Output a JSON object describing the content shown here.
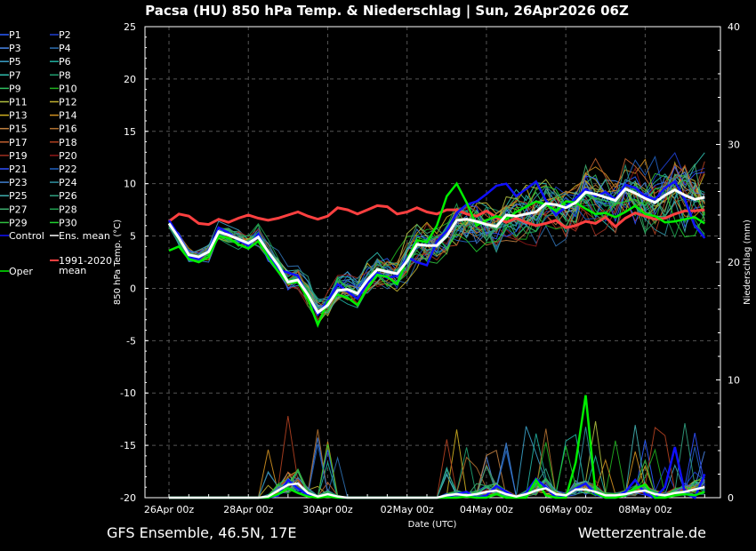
{
  "chart_data": {
    "type": "line",
    "title": "Pacsa  (HU)  850 hPa Temp. & Niederschlag | Sun, 26Apr2026 06Z",
    "xlabel": "Date (UTC)",
    "ylabel_left": "850 hPa Temp. (°C)",
    "ylabel_right": "Niederschlag (mm)",
    "footer_left": "GFS Ensemble, 46.5N, 17E",
    "footer_right": "Wetterzentrale.de",
    "x_tick_labels": [
      "26Apr 00z",
      "28Apr 00z",
      "30Apr 00z",
      "02May 00z",
      "04May 00z",
      "06May 00z",
      "08May 00z"
    ],
    "x_range_hours": [
      0,
      324
    ],
    "step_hours": 6,
    "y_left_ticks": [
      25,
      20,
      15,
      10,
      5,
      0,
      -5,
      -10,
      -15,
      -20
    ],
    "y_left_range": [
      -20,
      25
    ],
    "y_right_ticks": [
      40,
      30,
      20,
      10,
      0
    ],
    "y_right_range": [
      0,
      40
    ],
    "grid": true,
    "legend_position": "left",
    "legend": [
      {
        "label": "P1",
        "color": "#2a5cff"
      },
      {
        "label": "P2",
        "color": "#1f3fd0"
      },
      {
        "label": "P3",
        "color": "#4a86e8"
      },
      {
        "label": "P4",
        "color": "#2e6fb0"
      },
      {
        "label": "P5",
        "color": "#3aa0c8"
      },
      {
        "label": "P6",
        "color": "#20b0a0"
      },
      {
        "label": "P7",
        "color": "#30c0b0"
      },
      {
        "label": "P8",
        "color": "#20a070"
      },
      {
        "label": "P9",
        "color": "#30c060"
      },
      {
        "label": "P10",
        "color": "#20b020"
      },
      {
        "label": "P11",
        "color": "#b0c040"
      },
      {
        "label": "P12",
        "color": "#c0b030"
      },
      {
        "label": "P13",
        "color": "#d0b020"
      },
      {
        "label": "P14",
        "color": "#d09020"
      },
      {
        "label": "P15",
        "color": "#c08040"
      },
      {
        "label": "P16",
        "color": "#b07030"
      },
      {
        "label": "P17",
        "color": "#c06030"
      },
      {
        "label": "P18",
        "color": "#b04020"
      },
      {
        "label": "P19",
        "color": "#a03020"
      },
      {
        "label": "P20",
        "color": "#901818"
      },
      {
        "label": "P21",
        "color": "#3050ff"
      },
      {
        "label": "P22",
        "color": "#2060c0"
      },
      {
        "label": "P23",
        "color": "#4080d0"
      },
      {
        "label": "P24",
        "color": "#3090a0"
      },
      {
        "label": "P25",
        "color": "#40b0b0"
      },
      {
        "label": "P26",
        "color": "#30a080"
      },
      {
        "label": "P27",
        "color": "#40b070"
      },
      {
        "label": "P28",
        "color": "#20a050"
      },
      {
        "label": "P29",
        "color": "#30c040"
      },
      {
        "label": "P30",
        "color": "#20d030"
      },
      {
        "label": "Control",
        "color": "#1010ff"
      },
      {
        "label": "Ens. mean",
        "color": "#ffffff"
      },
      {
        "label": "Oper",
        "color": "#00ee00"
      },
      {
        "label": "1991-2020 mean",
        "color": "#ff4040"
      }
    ],
    "ens_mean_temp": [
      6.2,
      4.8,
      3.2,
      3.0,
      3.5,
      5.4,
      5.1,
      4.7,
      4.3,
      4.9,
      3.5,
      2.2,
      0.6,
      0.8,
      -0.6,
      -2.3,
      -1.6,
      -0.2,
      -0.1,
      -0.5,
      0.8,
      1.8,
      1.6,
      1.4,
      2.6,
      4.2,
      4.1,
      4.1,
      5.0,
      6.5,
      6.6,
      6.4,
      6.1,
      5.9,
      7.0,
      6.9,
      7.1,
      7.3,
      8.1,
      8.0,
      7.7,
      8.2,
      9.2,
      9.0,
      8.7,
      8.4,
      9.5,
      9.1,
      8.6,
      8.2,
      8.9,
      9.4,
      8.9,
      8.5,
      8.7
    ],
    "control_temp": [
      6.5,
      5.0,
      3.0,
      2.8,
      3.6,
      5.8,
      5.3,
      4.6,
      4.1,
      5.2,
      3.3,
      1.8,
      1.5,
      1.2,
      -0.8,
      -2.5,
      -1.2,
      0.4,
      -0.3,
      -1.0,
      0.5,
      1.5,
      1.0,
      1.2,
      3.0,
      2.5,
      2.2,
      4.5,
      5.5,
      7.2,
      8.0,
      8.3,
      9.0,
      9.8,
      10.0,
      8.8,
      9.5,
      10.2,
      8.4,
      7.0,
      7.8,
      8.6,
      9.5,
      8.8,
      9.2,
      8.5,
      9.9,
      9.6,
      8.8,
      8.5,
      9.6,
      10.2,
      8.5,
      6.0,
      4.8
    ],
    "oper_temp": [
      3.6,
      4.0,
      2.8,
      2.5,
      3.0,
      5.0,
      4.8,
      4.2,
      3.8,
      4.5,
      3.0,
      1.6,
      0.5,
      0.6,
      -1.0,
      -3.5,
      -1.3,
      -0.6,
      -0.9,
      -1.6,
      0.0,
      1.3,
      1.1,
      0.4,
      2.8,
      4.6,
      4.4,
      6.0,
      8.8,
      10.0,
      8.2,
      6.0,
      6.5,
      6.9,
      6.6,
      7.3,
      7.8,
      8.3,
      8.0,
      7.4,
      8.3,
      8.2,
      7.6,
      7.1,
      7.2,
      6.8,
      7.3,
      7.9,
      7.1,
      6.9,
      6.3,
      6.4,
      6.6,
      6.8,
      6.2
    ],
    "climate_mean_temp": [
      6.4,
      7.1,
      6.9,
      6.2,
      6.1,
      6.6,
      6.3,
      6.7,
      7.0,
      6.7,
      6.5,
      6.7,
      7.0,
      7.3,
      6.9,
      6.6,
      6.9,
      7.7,
      7.5,
      7.1,
      7.5,
      7.9,
      7.8,
      7.1,
      7.3,
      7.7,
      7.3,
      7.1,
      7.5,
      7.5,
      7.1,
      6.9,
      7.4,
      6.8,
      6.3,
      6.7,
      6.3,
      6.0,
      6.2,
      6.5,
      5.8,
      6.0,
      6.4,
      6.2,
      6.8,
      5.9,
      6.7,
      7.2,
      6.9,
      6.6,
      6.7,
      7.1,
      7.4,
      7.4,
      7.5
    ],
    "ens_mean_precip": [
      0,
      0,
      0,
      0,
      0,
      0,
      0,
      0,
      0,
      0,
      0.1,
      0.6,
      1.1,
      1.2,
      0.4,
      0.1,
      0.3,
      0.1,
      0,
      0,
      0,
      0,
      0,
      0,
      0,
      0,
      0,
      0,
      0.2,
      0.3,
      0.2,
      0.3,
      0.5,
      0.6,
      0.3,
      0.1,
      0.3,
      0.6,
      0.8,
      0.3,
      0.2,
      0.7,
      0.7,
      0.5,
      0.2,
      0.2,
      0.3,
      0.5,
      0.6,
      0.3,
      0.2,
      0.4,
      0.5,
      0.7,
      0.9
    ],
    "control_precip": [
      0,
      0,
      0,
      0,
      0,
      0,
      0,
      0,
      0,
      0,
      0,
      0.2,
      1.5,
      0.8,
      0.2,
      0,
      0.2,
      0,
      0,
      0,
      0,
      0,
      0,
      0,
      0,
      0,
      0,
      0,
      0,
      0.3,
      0.5,
      0,
      0.2,
      1.0,
      0.5,
      0,
      0.4,
      1.6,
      0.9,
      0,
      0.2,
      0.8,
      1.2,
      0.3,
      0,
      0,
      0.5,
      1.5,
      0.3,
      0,
      0.9,
      4.3,
      0.4,
      0,
      2.0
    ],
    "oper_precip": [
      0,
      0,
      0,
      0,
      0,
      0,
      0,
      0,
      0,
      0,
      0,
      0.3,
      0.8,
      0.4,
      0.1,
      0,
      0.1,
      0,
      0,
      0,
      0,
      0,
      0,
      0,
      0,
      0,
      0,
      0,
      0,
      0,
      0.1,
      0,
      0,
      0.3,
      0,
      0,
      0,
      1.5,
      0.2,
      0,
      0,
      3.0,
      8.7,
      0.4,
      0,
      0,
      0.2,
      0.8,
      1.1,
      0,
      0,
      0.2,
      0.3,
      0.2,
      0.5
    ]
  }
}
